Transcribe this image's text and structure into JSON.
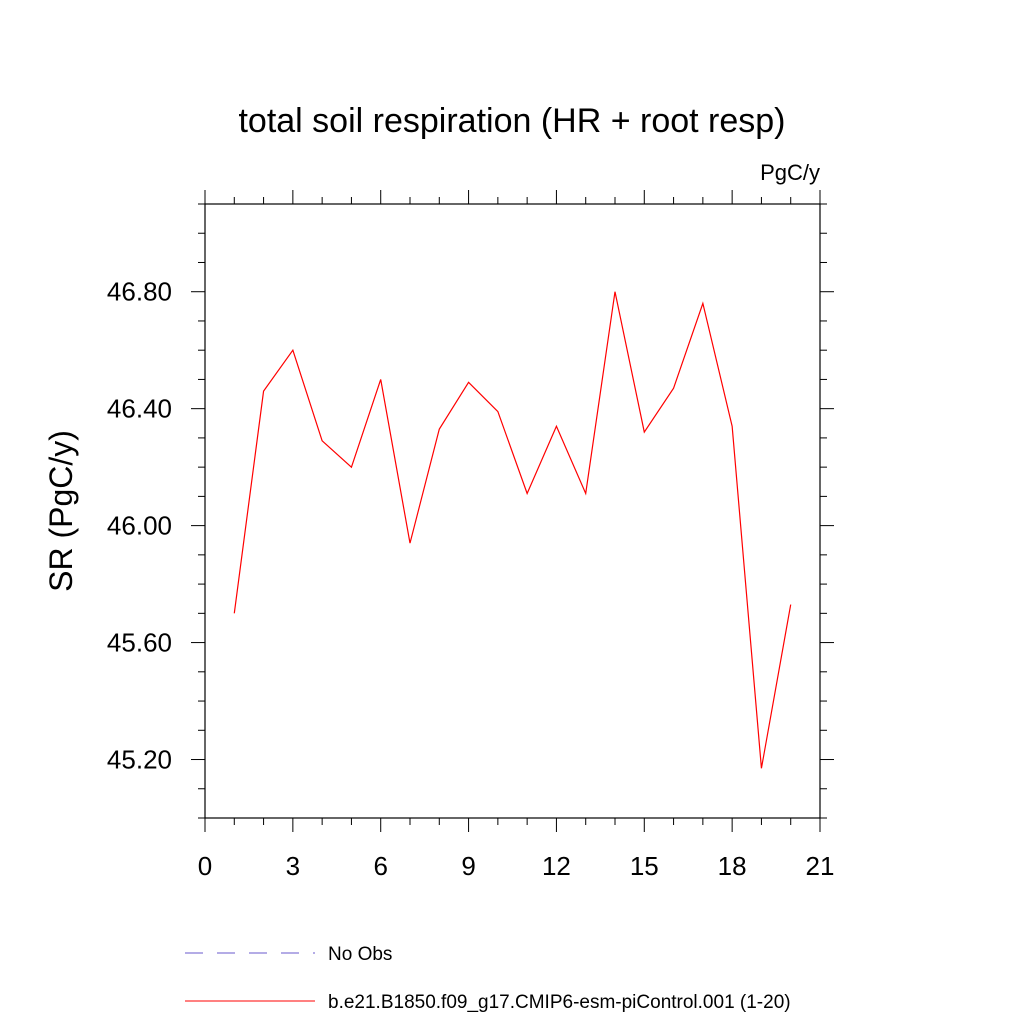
{
  "chart_data": {
    "type": "line",
    "title": "total soil respiration (HR + root resp)",
    "units_label": "PgC/y",
    "xlabel": "",
    "ylabel": "SR  (PgC/y)",
    "xlim": [
      0,
      21
    ],
    "ylim": [
      45.0,
      47.1
    ],
    "x_ticks": [
      0,
      3,
      6,
      9,
      12,
      15,
      18,
      21
    ],
    "x_tick_labels": [
      "0",
      "3",
      "6",
      "9",
      "12",
      "15",
      "18",
      "21"
    ],
    "y_ticks": [
      45.2,
      45.6,
      46.0,
      46.4,
      46.8
    ],
    "y_tick_labels": [
      "45.20",
      "45.60",
      "46.00",
      "46.40",
      "46.80"
    ],
    "x_minor_step": 1,
    "y_minor_step": 0.1,
    "series": [
      {
        "name": "b.e21.B1850.f09_g17.CMIP6-esm-piControl.001 (1-20)",
        "color": "#ff0000",
        "dash": "solid",
        "x": [
          1,
          2,
          3,
          4,
          5,
          6,
          7,
          8,
          9,
          10,
          11,
          12,
          13,
          14,
          15,
          16,
          17,
          18,
          19,
          20
        ],
        "values": [
          45.7,
          46.46,
          46.6,
          46.29,
          46.2,
          46.5,
          45.94,
          46.33,
          46.49,
          46.39,
          46.11,
          46.34,
          46.11,
          46.8,
          46.32,
          46.47,
          46.76,
          46.34,
          45.17,
          45.73
        ]
      }
    ],
    "legend": [
      {
        "label": "No Obs",
        "color": "#6a5acd",
        "dash": "dashed"
      },
      {
        "label": "b.e21.B1850.f09_g17.CMIP6-esm-piControl.001 (1-20)",
        "color": "#ff0000",
        "dash": "solid"
      }
    ],
    "legend_position": "bottom"
  }
}
